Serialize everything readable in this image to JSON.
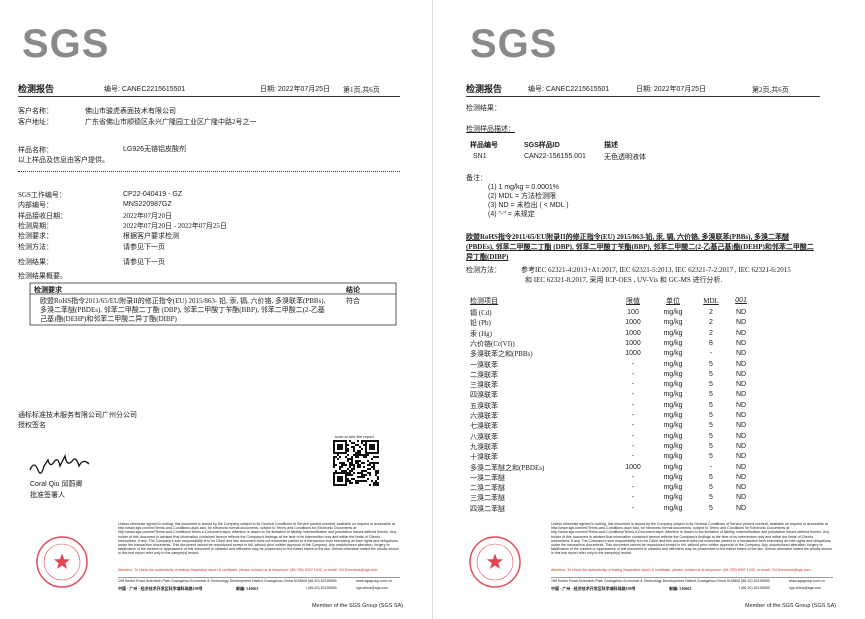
{
  "logo": "SGS",
  "report_title": "检测报告",
  "report_number": "编号: CANEC2215615501",
  "report_date": "日期: 2022年07月25日",
  "footer": {
    "fine_print": "Unless otherwise agreed in writing, this document is issued by the Company subject to its General Conditions of Service printed overleaf, available on request or accessible at http://www.sgs.com/en/Terms-and-Conditions.aspx and, for electronic format documents, subject to Terms and Conditions for Electronic Documents at http://www.sgs.com/en/Terms-and-Conditions/Terms-e-Document.aspx. Attention is drawn to the limitation of liability, indemnification and jurisdiction issues defined therein. Any holder of this document is advised that information contained hereon reflects the Company's findings at the time of its intervention only and within the limits of Client's instructions, if any. The Company's sole responsibility is to its Client and this document does not exonerate parties to a transaction from exercising all their rights and obligations under the transaction documents. This document cannot be reproduced except in full, without prior written approval of the Company. Any unauthorized alteration, forgery or falsification of the content or appearance of this document is unlawful and offenders may be prosecuted to the fullest extent of the law. Unless otherwise stated the results shown in this test report refer only to the sample(s) tested.",
    "authenticity": "Attention: To check the authenticity of testing /inspection report & certificate, please contact us at telephone: (86-755) 8307 1443, or email: CN.Doccheck@sgs.com",
    "address_en": "198 Kezhu Road,Scientech Park Guangzhou Economic & Technology Development District,Guangzhou,China 510663",
    "phone_en": "t (86-20) 82155555",
    "web": "www.sgsgroup.com.cn",
    "address_cn": "中国 · 广州 · 经济技术开发区科学城科珠路198号",
    "postcode": "邮编: 510663",
    "phone_cn": "t (86-20) 82155555",
    "email": "sgs.china@sgs.com",
    "member": "Member of the SGS Group (SGS SA)"
  },
  "page1": {
    "page_no": "第1页,共6页",
    "client": [
      [
        "客户名称：",
        "佛山市骏虎表面技术有限公司"
      ],
      [
        "客户地址：",
        "广东省佛山市顺德区永兴广隆园工业区广隆中路2号之一"
      ]
    ],
    "sample": [
      "样品名称：",
      "LG926无铬铝皮酸剂"
    ],
    "sample_note": "以上样品及信息由客户提供。",
    "info": [
      [
        "SGS工作编号：",
        "CP22-040419 - GZ"
      ],
      [
        "内部编号：",
        "MNS220987GZ"
      ],
      [
        "样品接收日期：",
        "2022年07月20日"
      ],
      [
        "检测周期：",
        "2022年07月20日 - 2022年07月25日"
      ],
      [
        "检测要求：",
        "根据客户要求检测"
      ],
      [
        "检测方法：",
        "请参见下一页"
      ],
      [
        "检测结果：",
        "请参见下一页"
      ]
    ],
    "summary_title": "检测结果概要。",
    "summary_table": {
      "headers": [
        "检测要求",
        "结论"
      ],
      "row": [
        "欧盟RoHS指令2011/65/EU附录II的修正指令(EU) 2015/863- 铅, 汞, 镉, 六价铬, 多溴联苯(PBBs), 多溴二苯醚(PBDEs), 邻苯二甲酸二丁酯 (DBP), 邻苯二甲酸丁苄酯(BBP), 邻苯二甲酸二(2-乙基己基)酯(DEHP)和邻苯二甲酸二异丁酯(DIBP)",
        "符合"
      ]
    },
    "company": "通标标准技术服务有限公司广州分公司",
    "signature_label": "授权签名",
    "qr_caption": "scan to see the report",
    "signer": "Coral Qiu  邱蔚卿",
    "signer_title": "批准签署人"
  },
  "page2": {
    "page_no": "第2页,共6页",
    "results_label": "检测结果：",
    "sample_desc_title": "检测样品描述：",
    "sample_table": {
      "headers": [
        "样品编号",
        "SGS样品ID",
        "描述"
      ],
      "rows": [
        [
          "SN1",
          "CAN22-156155.001",
          "无色透明液体"
        ]
      ]
    },
    "notes_label": "备注：",
    "notes": [
      "(1) 1 mg/kg = 0.0001%",
      "(2) MDL = 方法检测限",
      "(3) ND = 未检出 ( < MDL )",
      "(4) \"-\" = 未规定"
    ],
    "test_title": "欧盟RoHS指令2011/65/EU附录II的修正指令(EU) 2015/863-铅, 汞, 镉, 六价铬, 多溴联苯(PBBs), 多溴二苯醚(PBDEs), 邻苯二甲酸二丁酯 (DBP), 邻苯二甲酸丁苄酯(BBP), 邻苯二甲酸二(2-乙基己基)酯(DEHP)和邻苯二甲酸二异丁酯(DIBP)",
    "method_label": "检测方法：",
    "method": [
      "参考IEC 62321-4:2013+A1:2017, IEC 62321-5:2013, IEC 62321-7-2:2017 , IEC 62321-6:2015",
      "和 IEC 62321-8:2017, 采用 ICP-OES , UV-Vis 和 GC-MS 进行分析."
    ],
    "results": {
      "headers": [
        "检测项目",
        "限值",
        "单位",
        "MDL",
        "001"
      ],
      "rows": [
        [
          "镉 (Cd)",
          "100",
          "mg/kg",
          "2",
          "ND"
        ],
        [
          "铅 (Pb)",
          "1000",
          "mg/kg",
          "2",
          "ND"
        ],
        [
          "汞 (Hg)",
          "1000",
          "mg/kg",
          "2",
          "ND"
        ],
        [
          "六价铬(Cr(VI))",
          "1000",
          "mg/kg",
          "8",
          "ND"
        ],
        [
          "多溴联苯之和(PBBs)",
          "1000",
          "mg/kg",
          "-",
          "ND"
        ],
        [
          "一溴联苯",
          "-",
          "mg/kg",
          "5",
          "ND"
        ],
        [
          "二溴联苯",
          "-",
          "mg/kg",
          "5",
          "ND"
        ],
        [
          "三溴联苯",
          "-",
          "mg/kg",
          "5",
          "ND"
        ],
        [
          "四溴联苯",
          "-",
          "mg/kg",
          "5",
          "ND"
        ],
        [
          "五溴联苯",
          "-",
          "mg/kg",
          "5",
          "ND"
        ],
        [
          "六溴联苯",
          "-",
          "mg/kg",
          "5",
          "ND"
        ],
        [
          "七溴联苯",
          "-",
          "mg/kg",
          "5",
          "ND"
        ],
        [
          "八溴联苯",
          "-",
          "mg/kg",
          "5",
          "ND"
        ],
        [
          "九溴联苯",
          "-",
          "mg/kg",
          "5",
          "ND"
        ],
        [
          "十溴联苯",
          "-",
          "mg/kg",
          "5",
          "ND"
        ],
        [
          "多溴二苯醚之和(PBDEs)",
          "1000",
          "mg/kg",
          "-",
          "ND"
        ],
        [
          "一溴二苯醚",
          "-",
          "mg/kg",
          "5",
          "ND"
        ],
        [
          "二溴二苯醚",
          "-",
          "mg/kg",
          "5",
          "ND"
        ],
        [
          "三溴二苯醚",
          "-",
          "mg/kg",
          "5",
          "ND"
        ],
        [
          "四溴二苯醚",
          "-",
          "mg/kg",
          "5",
          "ND"
        ]
      ]
    }
  }
}
